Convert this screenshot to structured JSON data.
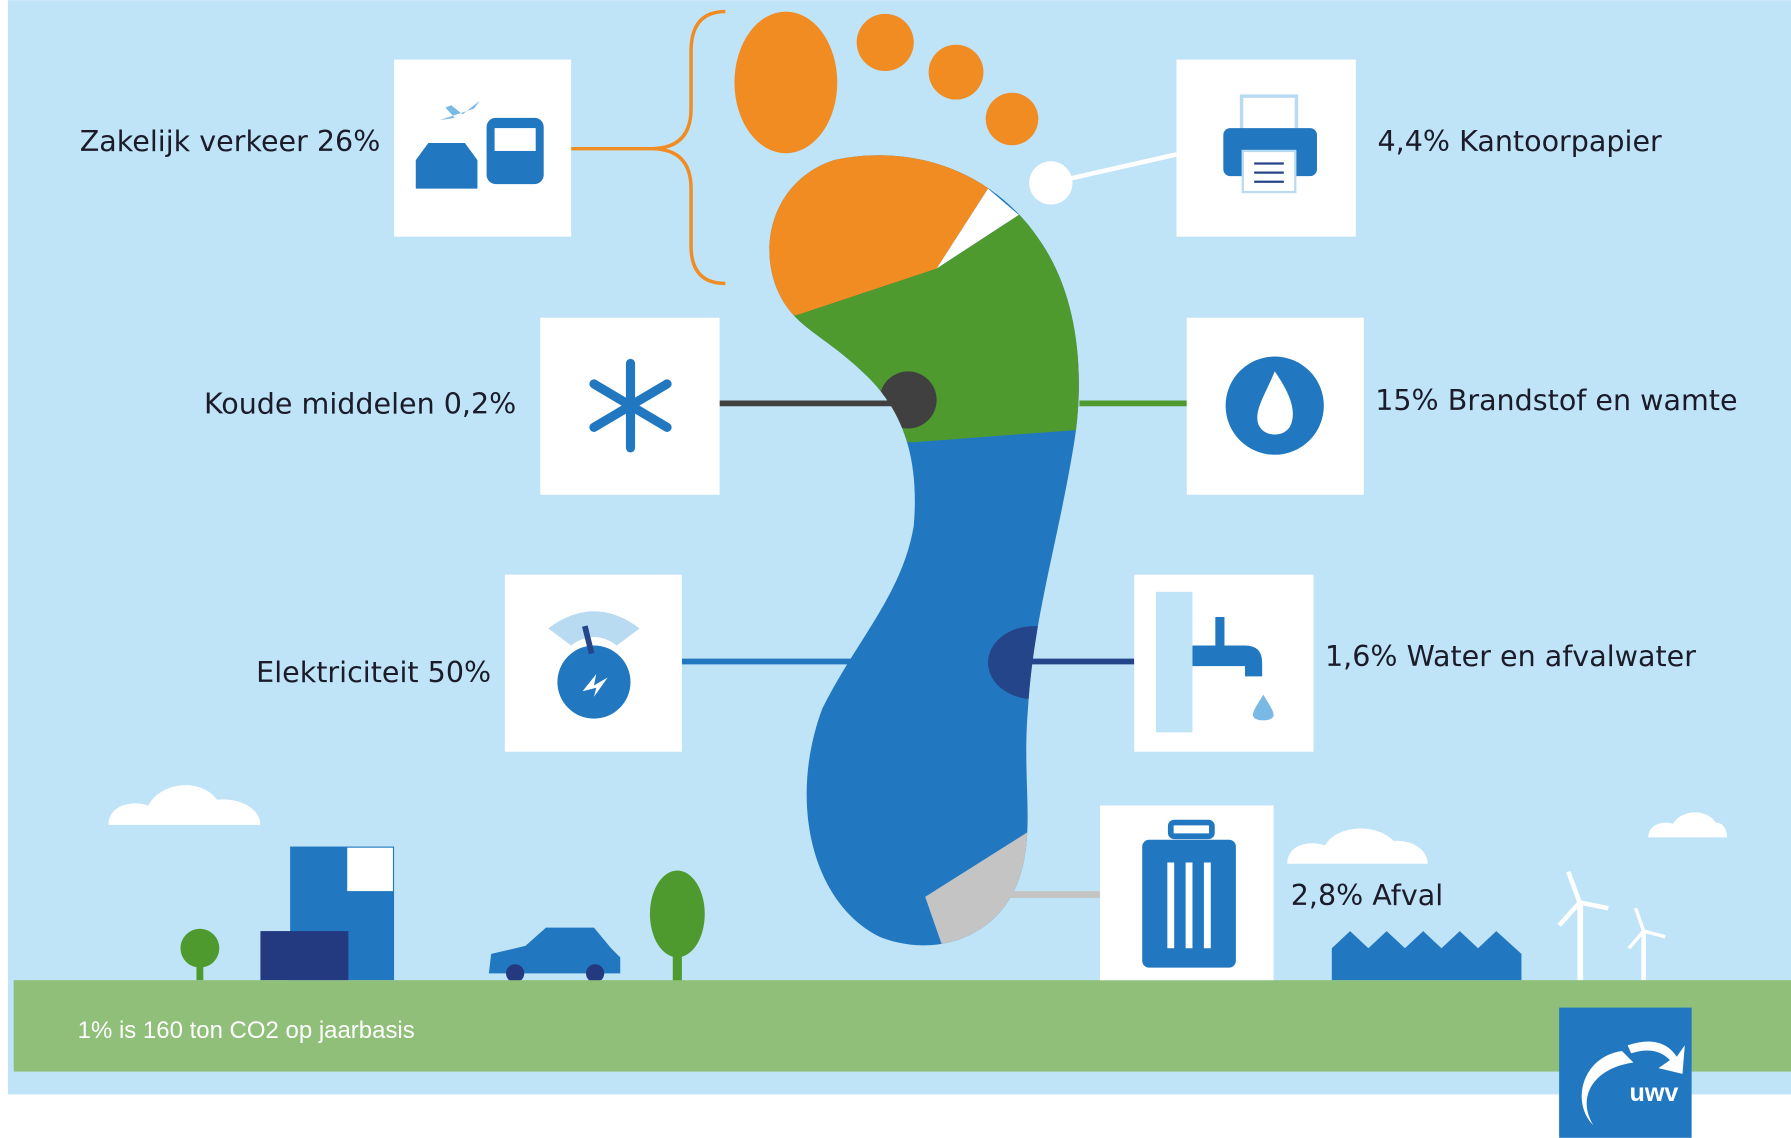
{
  "labels": {
    "zakelijk_verkeer": "Zakelijk verkeer 26%",
    "kantoorpapier": "4,4% Kantoorpapier",
    "koude_middelen": "Koude middelen 0,2%",
    "brandstof": "15% Brandstof en wamte",
    "elektriciteit": "Elektriciteit 50%",
    "water": "1,6% Water en afvalwater",
    "afval": "2,8% Afval"
  },
  "footer": "1% is 160 ton CO2 op jaarbasis",
  "logo": "uwv"
}
